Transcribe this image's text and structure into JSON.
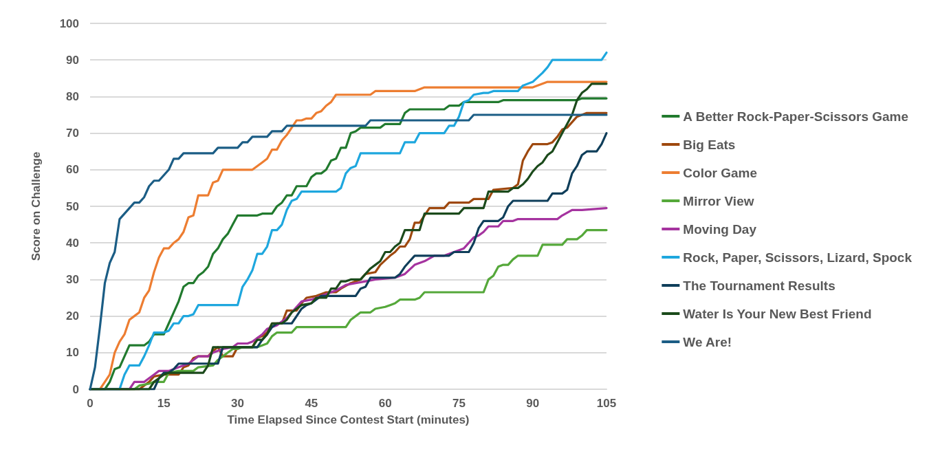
{
  "chart_data": {
    "type": "line",
    "xlabel": "Time Elapsed Since Contest Start (minutes)",
    "ylabel": "Score on Challenge",
    "xlim": [
      0,
      105
    ],
    "xticks": [
      0,
      15,
      30,
      45,
      60,
      75,
      90,
      105
    ],
    "ylim": [
      0,
      100
    ],
    "yticks": [
      0,
      10,
      20,
      30,
      40,
      50,
      60,
      70,
      80,
      90,
      100
    ],
    "grid": "y",
    "legend": "right",
    "marker": "none",
    "line_style": "solid",
    "series": [
      {
        "name": "A Better Rock-Paper-Scissors Game",
        "color": "#217a2e",
        "x": [
          0,
          3,
          4,
          5,
          6,
          7,
          8,
          11,
          12,
          13,
          15,
          16,
          17,
          18,
          19,
          20,
          21,
          22,
          23,
          24,
          25,
          26,
          27,
          28,
          29,
          30,
          34,
          35,
          37,
          38,
          39,
          40,
          41,
          42,
          44,
          45,
          46,
          47,
          48,
          49,
          50,
          51,
          52,
          53,
          54,
          55,
          59,
          60,
          63,
          64,
          65,
          72,
          73,
          75,
          76,
          83,
          84,
          99,
          100,
          105
        ],
        "values": [
          0,
          0,
          2,
          5.5,
          6,
          9,
          12,
          12,
          13,
          15,
          15,
          18,
          21,
          24,
          28,
          29,
          29,
          31,
          32,
          33.5,
          37,
          38.5,
          41,
          42.5,
          45,
          47.5,
          47.5,
          48,
          48,
          50,
          51,
          53,
          53,
          55.5,
          55.5,
          58,
          59,
          59,
          60,
          62.5,
          63,
          66,
          66,
          70,
          70.5,
          71.5,
          71.5,
          72.5,
          72.5,
          75.5,
          76.5,
          76.5,
          77.5,
          77.5,
          78.5,
          78.5,
          79,
          79,
          79.5,
          79.5
        ]
      },
      {
        "name": "Big Eats",
        "color": "#9e480e",
        "x": [
          0,
          10,
          11,
          12,
          13,
          15,
          18,
          19,
          20,
          21,
          22,
          24,
          25,
          26,
          27,
          29,
          30,
          33,
          34,
          35,
          36,
          37,
          39,
          40,
          42,
          43,
          44,
          46,
          48,
          50,
          51,
          53,
          55,
          56,
          58,
          59,
          61,
          62,
          63,
          64,
          65,
          66,
          67,
          68,
          69,
          72,
          73,
          77,
          78,
          81,
          82,
          86,
          87,
          88,
          89,
          90,
          93,
          94,
          95,
          96,
          97,
          98,
          99,
          101,
          105
        ],
        "values": [
          0,
          0,
          1,
          2,
          3.5,
          4,
          4,
          6,
          6.5,
          8.5,
          9,
          9,
          10.5,
          11.5,
          9,
          9,
          11.5,
          11.5,
          14,
          14.5,
          15.5,
          18,
          18,
          21.5,
          21.5,
          23.5,
          25,
          25.5,
          26.5,
          26.5,
          27.5,
          29,
          30,
          31.5,
          32,
          34,
          36.5,
          37.5,
          39,
          39,
          41,
          45.5,
          45.5,
          47.5,
          49.5,
          49.5,
          51,
          51,
          52,
          52,
          54.5,
          55,
          56,
          62.5,
          65,
          67,
          67,
          67.5,
          69,
          71,
          71.5,
          73,
          74.5,
          75.5,
          75.5
        ]
      },
      {
        "name": "Color Game",
        "color": "#ed7d31",
        "x": [
          0,
          2,
          3,
          4,
          5,
          6,
          7,
          8,
          9,
          10,
          11,
          12,
          13,
          14,
          15,
          16,
          17,
          18,
          19,
          20,
          21,
          22,
          24,
          25,
          26,
          27,
          33,
          34,
          35,
          36,
          37,
          38,
          39,
          40,
          41,
          42,
          43,
          44,
          45,
          46,
          47,
          48,
          49,
          50,
          57,
          58,
          66,
          68,
          90,
          93,
          105
        ],
        "values": [
          0,
          0,
          2,
          4,
          10,
          13,
          15,
          19,
          20,
          21,
          25,
          27,
          32,
          36,
          38.5,
          38.5,
          40,
          41,
          43,
          47,
          47.5,
          53,
          53,
          56.5,
          57,
          60,
          60,
          61,
          62,
          63,
          65.5,
          65.5,
          68,
          69.5,
          71.5,
          73.5,
          73.5,
          74,
          74,
          75.5,
          76,
          77.5,
          78.5,
          80.5,
          80.5,
          81.5,
          81.5,
          82.5,
          82.5,
          84,
          84
        ]
      },
      {
        "name": "Mirror View",
        "color": "#55a83a",
        "x": [
          0,
          9,
          10,
          12,
          13,
          15,
          16,
          18,
          21,
          22,
          25,
          26,
          28,
          29,
          30,
          31,
          34,
          35,
          36,
          37,
          38,
          41,
          42,
          52,
          53,
          54,
          55,
          57,
          58,
          60,
          61,
          62,
          63,
          66,
          67,
          68,
          80,
          81,
          82,
          83,
          84,
          85,
          86,
          87,
          91,
          92,
          96,
          97,
          99,
          100,
          101,
          105
        ],
        "values": [
          0,
          0,
          1,
          1.5,
          2,
          2,
          4.5,
          5,
          5,
          6,
          6.5,
          8,
          10,
          11,
          11,
          11.5,
          11.5,
          12,
          12.5,
          14.5,
          15.5,
          15.5,
          17,
          17,
          19,
          20,
          21,
          21,
          22,
          22.5,
          23,
          23.5,
          24.5,
          24.5,
          25,
          26.5,
          26.5,
          30,
          31,
          33.5,
          34,
          34,
          35.5,
          36.5,
          36.5,
          39.5,
          39.5,
          41,
          41,
          42,
          43.5,
          43.5
        ]
      },
      {
        "name": "Moving Day",
        "color": "#a5339f",
        "x": [
          0,
          8,
          9,
          11,
          12,
          13,
          14,
          16,
          17,
          18,
          20,
          21,
          22,
          24,
          25,
          27,
          29,
          30,
          32,
          33,
          35,
          36,
          38,
          40,
          41,
          42,
          43,
          45,
          47,
          48,
          50,
          52,
          54,
          56,
          58,
          62,
          64,
          66,
          68,
          70,
          72,
          74,
          76,
          78,
          79,
          80,
          81,
          83,
          84,
          86,
          87,
          95,
          96,
          98,
          100,
          105
        ],
        "values": [
          0,
          0,
          2,
          2,
          3,
          4,
          5,
          5,
          5.5,
          6,
          7,
          8,
          9,
          9,
          10,
          11,
          11.5,
          12.5,
          12.5,
          13,
          15,
          16.5,
          17.5,
          19.5,
          21,
          22.5,
          24,
          24.5,
          25.5,
          26,
          27,
          28.5,
          29,
          29.5,
          30,
          30.5,
          31.5,
          34,
          35,
          36.5,
          36.5,
          37.5,
          38.5,
          41.5,
          42,
          43,
          44.5,
          44.5,
          46,
          46,
          46.5,
          46.5,
          47.5,
          49,
          49,
          49.5
        ]
      },
      {
        "name": "Rock, Paper, Scissors, Lizard, Spock",
        "color": "#1ea7de",
        "x": [
          0,
          6,
          7,
          8,
          10,
          11,
          12,
          13,
          15,
          16,
          17,
          18,
          19,
          20,
          21,
          22,
          30,
          31,
          32,
          33,
          34,
          35,
          36,
          37,
          38,
          39,
          40,
          41,
          42,
          43,
          50,
          51,
          52,
          53,
          54,
          55,
          63,
          64,
          66,
          67,
          72,
          73,
          74,
          75,
          76,
          77,
          78,
          80,
          81,
          82,
          87,
          88,
          90,
          92,
          93,
          94,
          104,
          105
        ],
        "values": [
          0,
          0,
          4,
          6.5,
          6.5,
          9,
          12,
          15.5,
          15.5,
          16,
          18,
          18,
          20,
          20,
          20.5,
          23,
          23,
          28,
          30,
          32.5,
          37,
          37,
          39,
          43.5,
          43.5,
          45,
          49,
          51.5,
          52,
          54,
          54,
          55,
          59,
          60.5,
          61,
          64.5,
          64.5,
          67.5,
          67.5,
          70,
          70,
          72,
          72,
          74.5,
          78.5,
          79,
          80.5,
          81,
          81,
          81.5,
          81.5,
          83,
          84,
          86.5,
          88,
          90,
          90,
          92
        ]
      },
      {
        "name": "The Tournament Results",
        "color": "#0f3e5a",
        "x": [
          0,
          13,
          14,
          15,
          16,
          17,
          18,
          26,
          27,
          34,
          35,
          36,
          37,
          38,
          41,
          42,
          43,
          44,
          45,
          47,
          54,
          55,
          56,
          57,
          62,
          63,
          64,
          65,
          66,
          73,
          74,
          77,
          78,
          79,
          80,
          83,
          84,
          85,
          86,
          93,
          94,
          96,
          97,
          98,
          99,
          100,
          101,
          103,
          104,
          105
        ],
        "values": [
          0,
          0,
          3,
          4.5,
          4.5,
          5.5,
          7,
          7,
          11.5,
          11.5,
          13.5,
          15,
          17,
          18,
          18,
          20,
          22,
          23,
          23.5,
          25.5,
          25.5,
          27.5,
          28,
          30.5,
          30.5,
          31.5,
          33.5,
          35,
          36.5,
          36.5,
          37.5,
          37.5,
          40,
          44,
          46,
          46,
          47,
          50,
          51.5,
          51.5,
          53.5,
          53.5,
          54.5,
          59,
          61,
          64,
          65,
          65,
          67,
          70
        ]
      },
      {
        "name": "Water Is Your New Best Friend",
        "color": "#1b4a1b",
        "x": [
          0,
          12,
          13,
          14,
          15,
          16,
          23,
          24,
          25,
          33,
          34,
          35,
          36,
          37,
          39,
          40,
          41,
          42,
          43,
          45,
          46,
          48,
          49,
          50,
          51,
          52,
          53,
          55,
          56,
          57,
          58,
          59,
          60,
          61,
          62,
          63,
          64,
          67,
          68,
          75,
          76,
          80,
          81,
          85,
          86,
          87,
          88,
          89,
          90,
          91,
          92,
          93,
          94,
          95,
          96,
          97,
          98,
          99,
          100,
          101,
          102,
          105
        ],
        "values": [
          0,
          0,
          2,
          3,
          4,
          4.5,
          4.5,
          6.5,
          11.5,
          11.5,
          13.5,
          13.5,
          15,
          18,
          18,
          19,
          21,
          22,
          23,
          23.5,
          25,
          25,
          27.5,
          27.5,
          29.5,
          29.5,
          30,
          30,
          31.5,
          33,
          34,
          35,
          37.5,
          37.5,
          39,
          40,
          43.5,
          43.5,
          48,
          48,
          49.5,
          49.5,
          54,
          54,
          55,
          55,
          56,
          57.5,
          59.5,
          61,
          62,
          64,
          65,
          67.5,
          70,
          72.5,
          75,
          79,
          81,
          82,
          83.5,
          83.5
        ]
      },
      {
        "name": "We Are!",
        "color": "#1b5d85",
        "x": [
          0,
          1,
          2,
          3,
          4,
          5,
          6,
          7,
          8,
          9,
          10,
          11,
          12,
          13,
          14,
          15,
          16,
          17,
          18,
          19,
          20,
          25,
          26,
          30,
          31,
          32,
          33,
          36,
          37,
          39,
          40,
          56,
          57,
          77,
          78,
          105
        ],
        "values": [
          0,
          6,
          17,
          29,
          34.5,
          37.5,
          46.5,
          48,
          49.5,
          51,
          51,
          52.5,
          55.5,
          57,
          57,
          58.5,
          60,
          63,
          63,
          64.5,
          64.5,
          64.5,
          66,
          66,
          67.5,
          67.5,
          69,
          69,
          70.5,
          70.5,
          72,
          72,
          73.5,
          73.5,
          75,
          75
        ]
      }
    ]
  }
}
